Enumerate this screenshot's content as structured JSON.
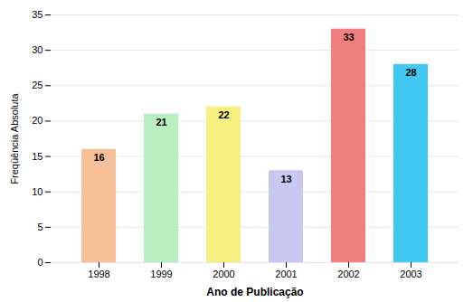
{
  "chart_data": {
    "type": "bar",
    "categories": [
      "1998",
      "1999",
      "2000",
      "2001",
      "2002",
      "2003"
    ],
    "values": [
      16,
      21,
      22,
      13,
      33,
      28
    ],
    "colors": [
      "#F5C097",
      "#B8EEC0",
      "#F5F080",
      "#C8C8F0",
      "#F08080",
      "#40C8F0"
    ],
    "xlabel": "Ano de Publicação",
    "ylabel": "Freqüência Absoluta",
    "ylim": [
      0,
      35
    ],
    "yticks": [
      0,
      5,
      10,
      15,
      20,
      25,
      30,
      35
    ],
    "grid": true,
    "data_labels": true
  }
}
